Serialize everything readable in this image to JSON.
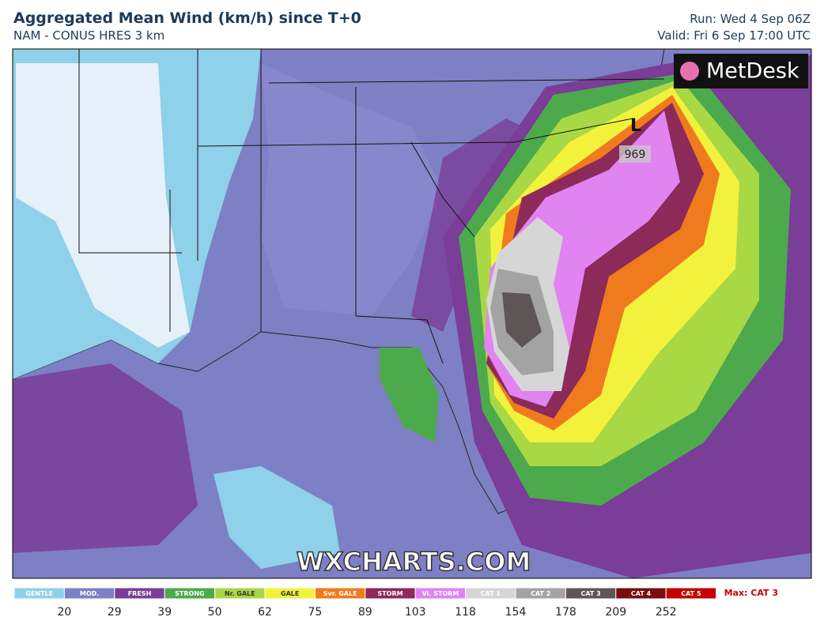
{
  "header": {
    "title": "Aggregated Mean Wind (km/h) since T+0",
    "subtitle": "NAM - CONUS HRES 3 km",
    "run": "Run: Wed 4 Sep 06Z",
    "valid": "Valid: Fri 6 Sep 17:00 UTC"
  },
  "map": {
    "logo": "MetDesk",
    "low_label": "L",
    "pressure": "969",
    "watermark": "WXCHARTS.COM"
  },
  "legend": {
    "categories": [
      {
        "label": "GENTLE",
        "color": "#8fd0ea"
      },
      {
        "label": "MOD.",
        "color": "#7d80c4"
      },
      {
        "label": "FRESH",
        "color": "#7a3d98"
      },
      {
        "label": "STRONG",
        "color": "#4caa4c"
      },
      {
        "label": "Nr. GALE",
        "color": "#a9d845"
      },
      {
        "label": "GALE",
        "color": "#f2f23c"
      },
      {
        "label": "Svr. GALE",
        "color": "#f07a1e"
      },
      {
        "label": "STORM",
        "color": "#8c2a5a"
      },
      {
        "label": "Vi. STORM",
        "color": "#e283f2"
      },
      {
        "label": "CAT 1",
        "color": "#d6d6d6"
      },
      {
        "label": "CAT 2",
        "color": "#a3a3a3"
      },
      {
        "label": "CAT 3",
        "color": "#5e5656"
      },
      {
        "label": "CAT 4",
        "color": "#7a0e0e"
      },
      {
        "label": "CAT 5",
        "color": "#c40000"
      }
    ],
    "thresholds": [
      20,
      29,
      39,
      50,
      62,
      75,
      89,
      103,
      118,
      154,
      178,
      209,
      252
    ],
    "max": "Max: CAT 3"
  }
}
